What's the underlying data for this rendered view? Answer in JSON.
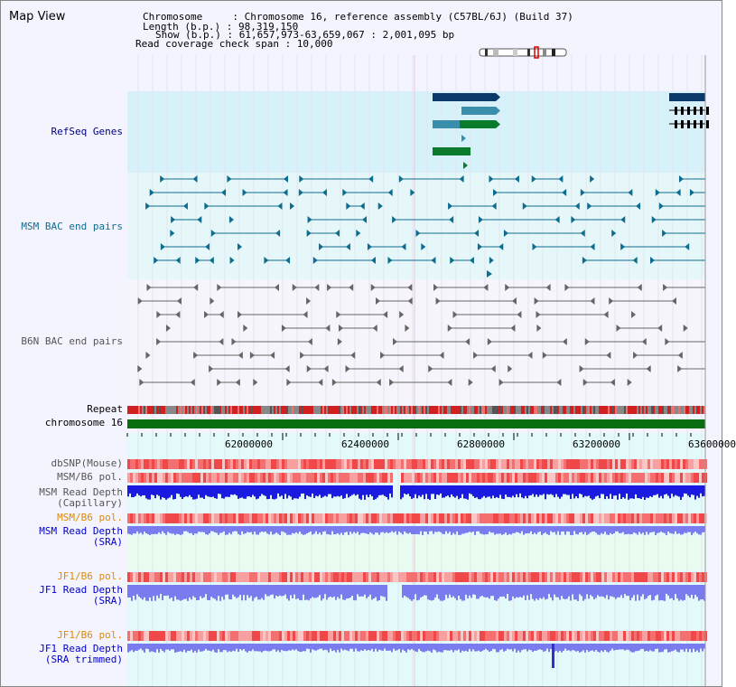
{
  "map_view": {
    "title": "Map View",
    "info_lines": [
      "Chromosome     : Chromosome 16, reference assembly (C57BL/6J) (Build 37)",
      "Length (b.p.) : 98,319,150",
      "Show (b.p.) : 61,657,973-63,659,067 : 2,001,095 bp",
      "Read coverage check span : 10,000"
    ]
  },
  "tracks": {
    "refseq_genes": "RefSeq Genes",
    "msm_bac": "MSM BAC end pairs",
    "b6n_bac": "B6N BAC end pairs",
    "repeat": "Repeat",
    "chromosome": "chromosome 16",
    "dbsnp": "dbSNP(Mouse)",
    "msm_b6_pol_1": "MSM/B6 pol.",
    "msm_read_depth_cap_1": "MSM Read Depth",
    "msm_read_depth_cap_2": "(Capillary)",
    "msm_b6_pol_2": "MSM/B6 pol.",
    "msm_read_depth_sra_1": "MSM Read Depth",
    "msm_read_depth_sra_2": "(SRA)",
    "jf1_b6_pol_1": "JF1/B6 pol.",
    "jf1_read_depth_sra_1": "JF1 Read Depth",
    "jf1_read_depth_sra_2": "(SRA)",
    "jf1_b6_pol_2": "JF1/B6 pol.",
    "jf1_read_depth_trim_1": "JF1 Read Depth",
    "jf1_read_depth_trim_2": "(SRA trimmed)"
  },
  "axis": {
    "ticks": [
      "62000000",
      "62400000",
      "62800000",
      "63200000",
      "63600000"
    ]
  },
  "colors": {
    "refseq_bg": "#d7f1fb",
    "msm_bac_bg": "#e6f7fa",
    "b6n_bg": "#f5f5fb",
    "lower_bg": "#e3fafa",
    "sra_bg": "#e9fcef",
    "gene_dark": "#0b3a68",
    "gene_mid": "#3a8eab",
    "gene_green": "#0a7a2b",
    "chromosome_green": "#0a6e10",
    "depth_blue": "#1a1ae0",
    "depth_light": "#7b7bf0"
  }
}
